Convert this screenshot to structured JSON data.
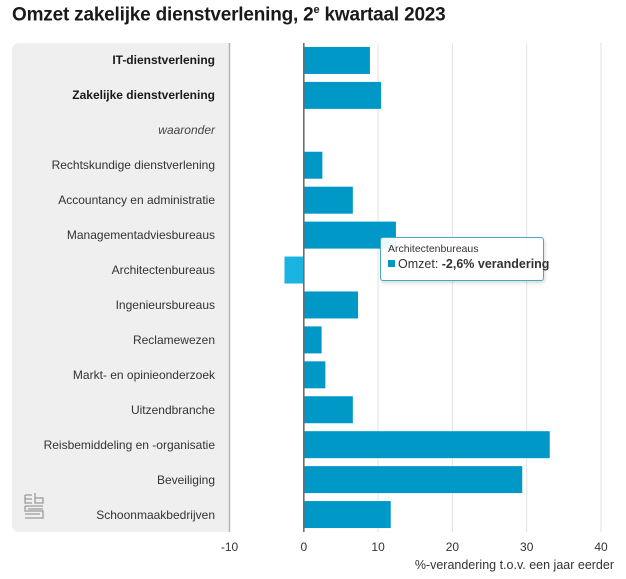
{
  "title": {
    "main": "Omzet zakelijke dienstverlening, 2",
    "superscript": "e",
    "rest": " kwartaal 2023"
  },
  "chart_data": {
    "type": "bar",
    "orientation": "horizontal",
    "title": "Omzet zakelijke dienstverlening, 2e kwartaal 2023",
    "xlabel": "%-verandering t.o.v. een jaar eerder",
    "ylabel": "",
    "xlim": [
      -10,
      40
    ],
    "xticks": [
      -10,
      0,
      10,
      20,
      30,
      40
    ],
    "xtick_labels": [
      "-10",
      "0",
      "10",
      "20",
      "30",
      "40"
    ],
    "grid": true,
    "categories": [
      "IT-dienstverlening",
      "Zakelijke dienstverlening",
      "waaronder",
      "Rechtskundige dienstverlening",
      "Accountancy en administratie",
      "Managementadviesbureaus",
      "Architectenbureaus",
      "Ingenieursbureaus",
      "Reclamewezen",
      "Markt- en opinieonderzoek",
      "Uitzendbranche",
      "Reisbemiddeling en -organisatie",
      "Beveiliging",
      "Schoonmaakbedrijven"
    ],
    "category_styles": [
      "bold",
      "bold",
      "italic",
      "normal",
      "normal",
      "normal",
      "normal",
      "normal",
      "normal",
      "normal",
      "normal",
      "normal",
      "normal",
      "normal"
    ],
    "series": [
      {
        "name": "Omzet",
        "color": "#0099c7",
        "highlight_color": "#1ab4e3",
        "values": [
          8.9,
          10.4,
          null,
          2.5,
          6.6,
          12.4,
          -2.6,
          7.3,
          2.4,
          2.9,
          6.6,
          33.1,
          29.4,
          11.7
        ]
      }
    ],
    "highlighted_index": 6,
    "tooltip": {
      "category": "Architectenbureaus",
      "series": "Omzet",
      "value_text": "-2,6% verandering"
    }
  },
  "colors": {
    "bar": "#0099c7",
    "bar_highlight": "#1ab4e3",
    "panel": "#efefef",
    "gridline": "#e2e2e2",
    "axis": "#6d6d6d",
    "tooltip_border": "#4aa8c4"
  },
  "logo": "cbs-logo"
}
